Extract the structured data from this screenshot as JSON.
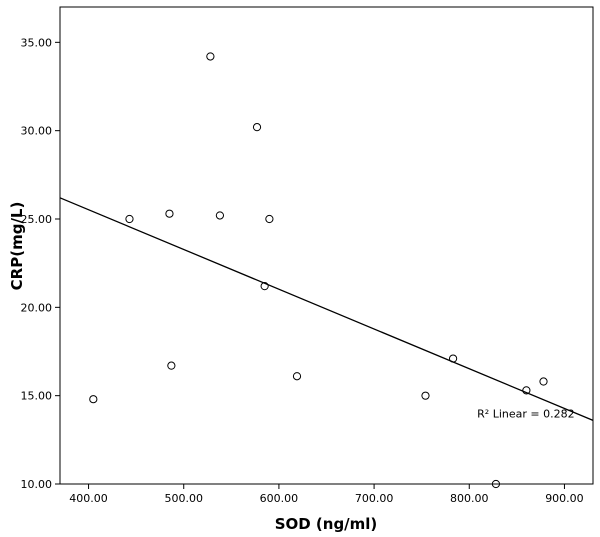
{
  "chart_data": {
    "type": "scatter",
    "title": "",
    "xlabel": "SOD (ng/ml)",
    "ylabel": "CRP(mg/L)",
    "xlim": [
      370,
      930
    ],
    "ylim": [
      10,
      37
    ],
    "grid": false,
    "x_ticks": [
      400,
      500,
      600,
      700,
      800,
      900
    ],
    "x_tick_labels": [
      "400.00",
      "500.00",
      "600.00",
      "700.00",
      "800.00",
      "900.00"
    ],
    "y_ticks": [
      10,
      15,
      20,
      25,
      30,
      35
    ],
    "y_tick_labels": [
      "10.00",
      "15.00",
      "20.00",
      "25.00",
      "30.00",
      "35.00"
    ],
    "points": [
      {
        "x": 405,
        "y": 14.8
      },
      {
        "x": 443,
        "y": 25.0
      },
      {
        "x": 485,
        "y": 25.3
      },
      {
        "x": 487,
        "y": 16.7
      },
      {
        "x": 528,
        "y": 34.2
      },
      {
        "x": 538,
        "y": 25.2
      },
      {
        "x": 577,
        "y": 30.2
      },
      {
        "x": 585,
        "y": 21.2
      },
      {
        "x": 590,
        "y": 25.0
      },
      {
        "x": 619,
        "y": 16.1
      },
      {
        "x": 754,
        "y": 15.0
      },
      {
        "x": 783,
        "y": 17.1
      },
      {
        "x": 828,
        "y": 10.0
      },
      {
        "x": 860,
        "y": 15.3
      },
      {
        "x": 878,
        "y": 15.8
      }
    ],
    "fit_line": {
      "type": "linear",
      "x": [
        370,
        930
      ],
      "y": [
        26.2,
        13.6
      ]
    },
    "annotation": {
      "text": "R² Linear = 0.282",
      "x": 844,
      "y": 14.0
    }
  }
}
